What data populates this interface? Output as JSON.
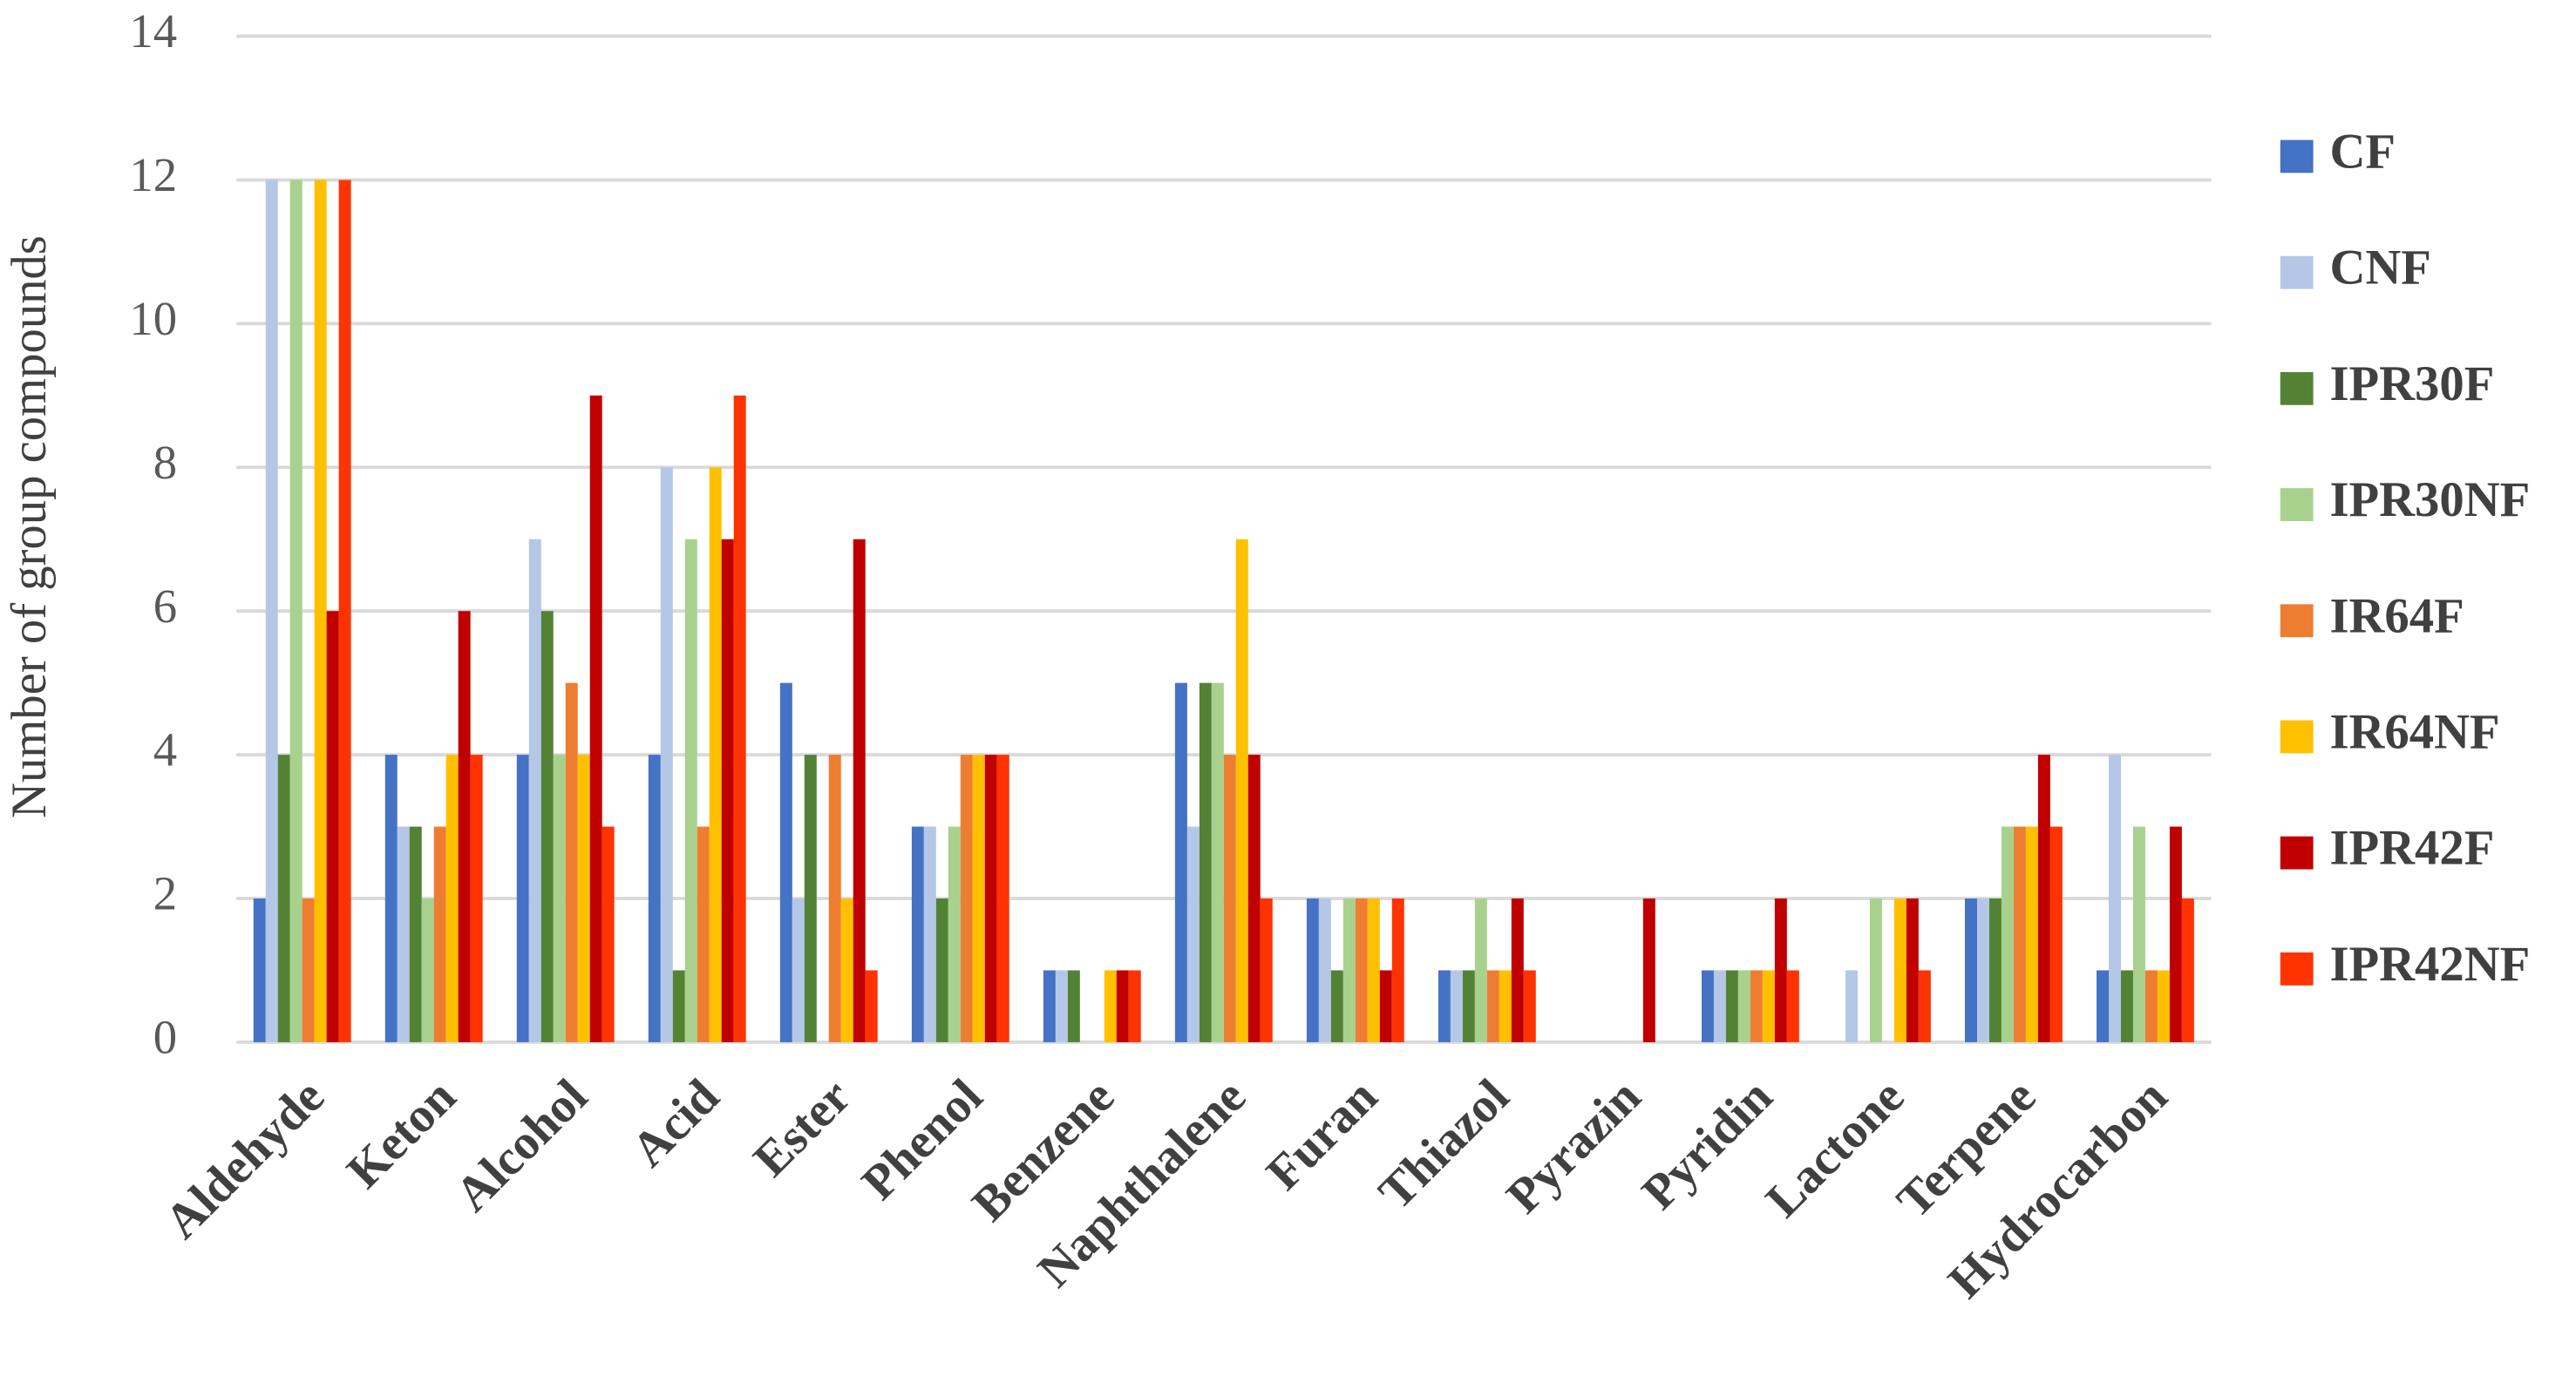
{
  "chart_data": {
    "type": "bar",
    "y_label": "Number of group compounds",
    "categories": [
      "Aldehyde",
      "Keton",
      "Alcohol",
      "Acid",
      "Ester",
      "Phenol",
      "Benzene",
      "Naphthalene",
      "Furan",
      "Thiazol",
      "Pyrazin",
      "Pyridin",
      "Lactone",
      "Terpene",
      "Hydrocarbon"
    ],
    "series": [
      {
        "name": "CF",
        "color": "#4472c4",
        "values": [
          2,
          4,
          4,
          4,
          5,
          3,
          1,
          5,
          2,
          1,
          0,
          1,
          0,
          2,
          1
        ]
      },
      {
        "name": "CNF",
        "color": "#b4c7e7",
        "values": [
          12,
          3,
          7,
          8,
          2,
          3,
          1,
          3,
          2,
          1,
          0,
          1,
          1,
          2,
          4
        ]
      },
      {
        "name": "IPR30F",
        "color": "#548235",
        "values": [
          4,
          3,
          6,
          1,
          4,
          2,
          1,
          5,
          1,
          1,
          0,
          1,
          0,
          2,
          1
        ]
      },
      {
        "name": "IPR30NF",
        "color": "#a9d18e",
        "values": [
          12,
          2,
          4,
          7,
          0,
          3,
          0,
          5,
          2,
          2,
          0,
          1,
          2,
          3,
          3
        ]
      },
      {
        "name": "IR64F",
        "color": "#ed7d31",
        "values": [
          2,
          3,
          5,
          3,
          4,
          4,
          0,
          4,
          2,
          1,
          0,
          1,
          0,
          3,
          1
        ]
      },
      {
        "name": "IR64NF",
        "color": "#ffc000",
        "values": [
          12,
          4,
          4,
          8,
          2,
          4,
          1,
          7,
          2,
          1,
          0,
          1,
          2,
          3,
          1
        ]
      },
      {
        "name": "IPR42F",
        "color": "#c00000",
        "values": [
          6,
          6,
          9,
          7,
          7,
          4,
          1,
          4,
          1,
          2,
          2,
          2,
          2,
          4,
          3
        ]
      },
      {
        "name": "IPR42NF",
        "color": "#ff3300",
        "values": [
          12,
          4,
          3,
          9,
          1,
          4,
          1,
          2,
          2,
          1,
          0,
          1,
          1,
          3,
          2
        ]
      }
    ],
    "ylim": [
      0,
      14
    ],
    "yticks": [
      0,
      2,
      4,
      6,
      8,
      10,
      12,
      14
    ],
    "grid": true,
    "legend": "right"
  }
}
